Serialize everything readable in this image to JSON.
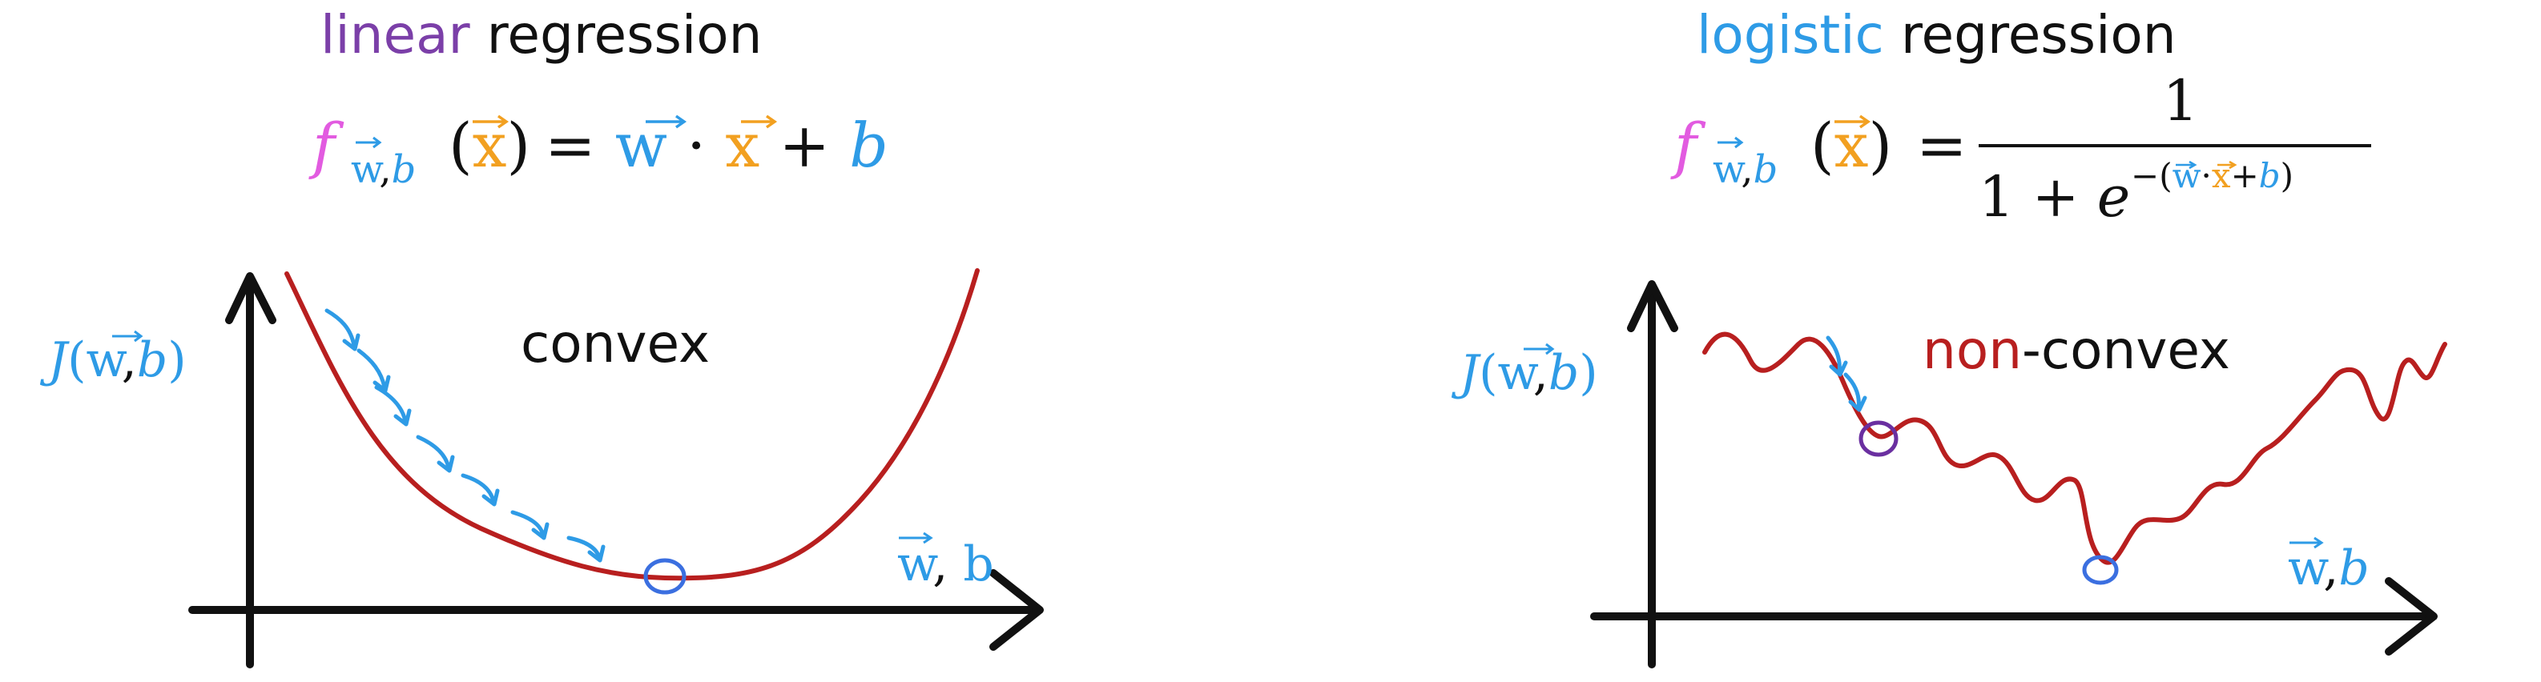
{
  "colors": {
    "purple": "#7B3FA8",
    "blue": "#2E9BE6",
    "magenta": "#E25BE0",
    "orange": "#F2A020",
    "red": "#B81F1F",
    "black": "#111111",
    "min_circle_blue": "#3B6FE0",
    "local_min_purple": "#6A2FA0"
  },
  "left_panel": {
    "title_word1": "linear",
    "title_word2": " regression",
    "formula": {
      "f": "f",
      "sub_w": "w",
      "sub_comma": ",",
      "sub_b": "b",
      "open_paren": "(",
      "x": "x",
      "close_paren": ")",
      "equals": " = ",
      "w": "w",
      "dot": " · ",
      "x2": "x",
      "plus": " + ",
      "b": "b"
    },
    "y_label": {
      "J": "J",
      "open": "(",
      "w": "w",
      "comma": ",",
      "b": "b",
      "close": ")"
    },
    "x_label": {
      "w": "w",
      "comma": ",",
      "b": " b"
    },
    "curve_label": "convex"
  },
  "right_panel": {
    "title_word1": "logistic",
    "title_word2": " regression",
    "formula": {
      "f": "f",
      "sub_w": "w",
      "sub_comma": ",",
      "sub_b": "b",
      "open_paren": "(",
      "x": "x",
      "close_paren": ")",
      "equals": "=",
      "numerator": "1",
      "denom_1": "1 + ",
      "denom_e": "e",
      "exp_minus": "−(",
      "exp_w": "w",
      "exp_dot": "·",
      "exp_x": "x",
      "exp_plus": "+",
      "exp_b": "b",
      "exp_close": ")"
    },
    "y_label": {
      "J": "J",
      "open": "(",
      "w": "w",
      "comma": ",",
      "b": "b",
      "close": ")"
    },
    "x_label": {
      "w": "w",
      "comma": ",",
      "b": "b"
    },
    "curve_label_part1": "non",
    "curve_label_part2": "-convex"
  }
}
